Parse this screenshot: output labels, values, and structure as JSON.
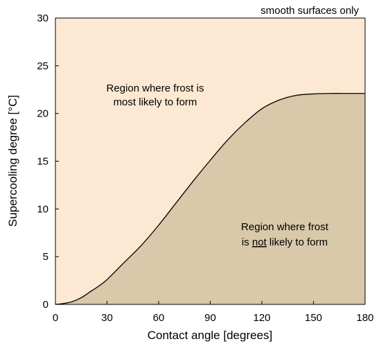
{
  "chart_data": {
    "type": "area",
    "title": "",
    "xlabel": "Contact angle [degrees]",
    "ylabel": "Supercooling degree [°C]",
    "xlim": [
      0,
      180
    ],
    "ylim": [
      0,
      30
    ],
    "xticks": [
      "0",
      "30",
      "60",
      "90",
      "120",
      "150",
      "180"
    ],
    "yticks": [
      "0",
      "5",
      "10",
      "15",
      "20",
      "25",
      "30"
    ],
    "grid": false,
    "legend": "none",
    "series": [
      {
        "x": [
          0,
          5,
          10,
          15,
          20,
          25,
          30,
          40,
          50,
          60,
          70,
          80,
          90,
          100,
          110,
          120,
          130,
          140,
          150,
          160,
          170,
          180
        ],
        "y": [
          0,
          0.1,
          0.3,
          0.7,
          1.3,
          1.9,
          2.6,
          4.4,
          6.2,
          8.3,
          10.6,
          12.9,
          15.1,
          17.2,
          19.0,
          20.5,
          21.4,
          21.9,
          22.05,
          22.1,
          22.1,
          22.1
        ]
      }
    ],
    "annotations": {
      "corner_note": "smooth surfaces only",
      "upper_region_line1": "Region where frost is",
      "upper_region_line2": "most likely to form",
      "lower_region_line1": "Region where frost",
      "lower_region_line2_pre": "is ",
      "lower_region_line2_underlined": "not",
      "lower_region_line2_post": " likely to form"
    },
    "colors": {
      "frost_region": "#fde9d3",
      "no_frost_region": "#d9c8a9",
      "curve": "#000000",
      "frame": "#000000"
    }
  }
}
